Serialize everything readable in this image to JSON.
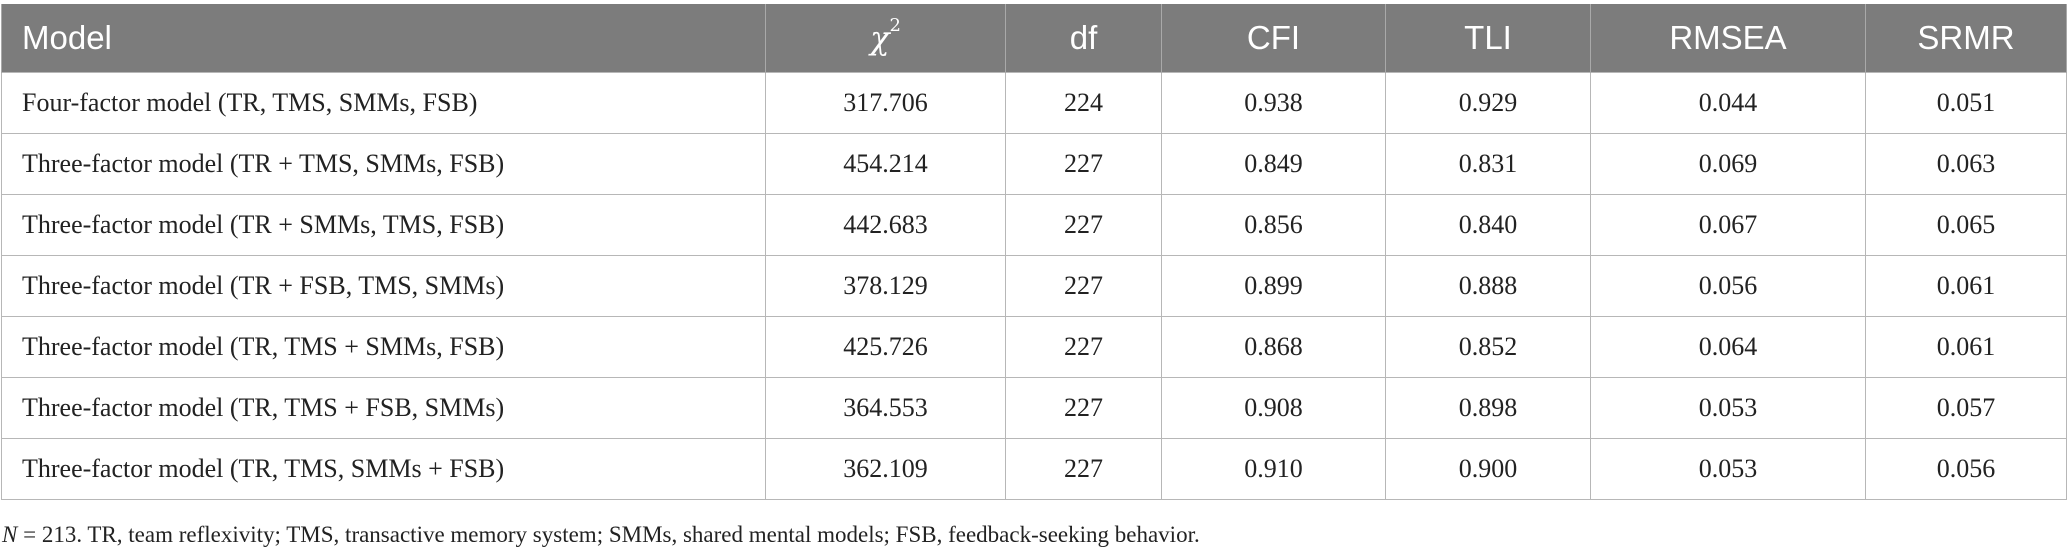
{
  "table": {
    "headers": [
      "Model",
      "χ",
      "df",
      "CFI",
      "TLI",
      "RMSEA",
      "SRMR"
    ],
    "chi_superscript": "2",
    "rows": [
      [
        "Four-factor model (TR, TMS, SMMs, FSB)",
        "317.706",
        "224",
        "0.938",
        "0.929",
        "0.044",
        "0.051"
      ],
      [
        "Three-factor model (TR + TMS, SMMs, FSB)",
        "454.214",
        "227",
        "0.849",
        "0.831",
        "0.069",
        "0.063"
      ],
      [
        "Three-factor model (TR + SMMs, TMS, FSB)",
        "442.683",
        "227",
        "0.856",
        "0.840",
        "0.067",
        "0.065"
      ],
      [
        "Three-factor model (TR + FSB, TMS, SMMs)",
        "378.129",
        "227",
        "0.899",
        "0.888",
        "0.056",
        "0.061"
      ],
      [
        "Three-factor model (TR, TMS + SMMs, FSB)",
        "425.726",
        "227",
        "0.868",
        "0.852",
        "0.064",
        "0.061"
      ],
      [
        "Three-factor model (TR, TMS + FSB, SMMs)",
        "364.553",
        "227",
        "0.908",
        "0.898",
        "0.053",
        "0.057"
      ],
      [
        "Three-factor model (TR, TMS, SMMs + FSB)",
        "362.109",
        "227",
        "0.910",
        "0.900",
        "0.053",
        "0.056"
      ]
    ]
  },
  "note": {
    "n_label": "N",
    "text": " = 213. TR, team reflexivity; TMS, transactive memory system; SMMs, shared mental models; FSB, feedback-seeking behavior."
  },
  "colors": {
    "header_bg": "#7c7c7c",
    "header_text": "#ffffff",
    "grid": "#b7b7b7"
  }
}
